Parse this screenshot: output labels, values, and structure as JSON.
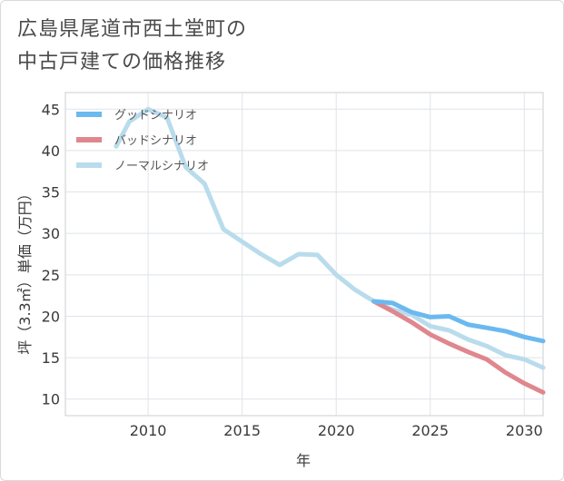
{
  "title_line1": "広島県尾道市西土堂町の",
  "title_line2": "中古戸建ての価格推移",
  "chart_data": {
    "type": "line",
    "title": "広島県尾道市西土堂町の中古戸建ての価格推移",
    "xlabel": "年",
    "ylabel": "坪（3.3㎡）単価（万円）",
    "xlim": [
      2005.6,
      2031
    ],
    "ylim": [
      8,
      47
    ],
    "x_ticks": [
      2010,
      2015,
      2020,
      2025,
      2030
    ],
    "y_ticks": [
      10,
      15,
      20,
      25,
      30,
      35,
      40,
      45
    ],
    "grid": true,
    "legend_position": "top-left",
    "series": [
      {
        "name": "グッドシナリオ",
        "color": "#6bb9ef",
        "x": [
          2022,
          2023,
          2024,
          2025,
          2026,
          2027,
          2028,
          2029,
          2030,
          2031
        ],
        "y": [
          21.8,
          21.6,
          20.5,
          19.9,
          20.0,
          19.0,
          18.6,
          18.2,
          17.5,
          17.0
        ]
      },
      {
        "name": "バッドシナリオ",
        "color": "#e0868d",
        "x": [
          2022,
          2023,
          2024,
          2025,
          2026,
          2027,
          2028,
          2029,
          2030,
          2031
        ],
        "y": [
          21.8,
          20.6,
          19.3,
          17.8,
          16.7,
          15.7,
          14.8,
          13.2,
          11.9,
          10.8
        ]
      },
      {
        "name": "ノーマルシナリオ",
        "color": "#b9dcec",
        "x": [
          2008.3,
          2009,
          2010,
          2011,
          2012,
          2013,
          2014,
          2015,
          2016,
          2017,
          2018,
          2019,
          2020,
          2021,
          2022,
          2023,
          2024,
          2025,
          2026,
          2027,
          2028,
          2029,
          2030,
          2031
        ],
        "y": [
          40.5,
          43.5,
          45.0,
          44.0,
          38.0,
          36.0,
          30.5,
          29.0,
          27.5,
          26.2,
          27.5,
          27.4,
          25.0,
          23.2,
          21.8,
          20.8,
          20.2,
          18.8,
          18.3,
          17.2,
          16.4,
          15.3,
          14.8,
          13.8
        ]
      }
    ]
  }
}
